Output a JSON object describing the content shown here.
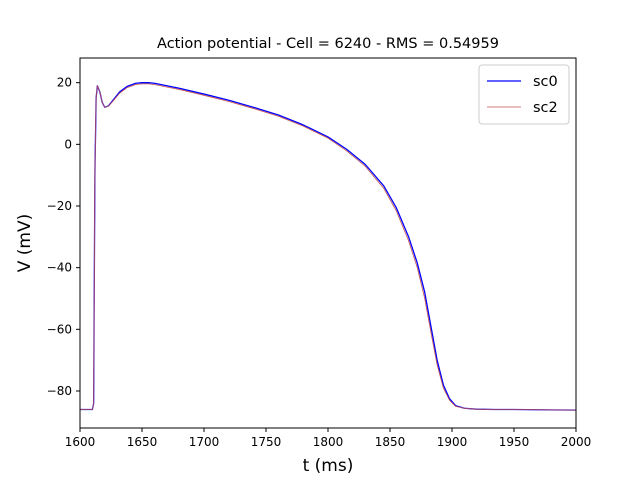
{
  "chart_data": {
    "type": "line",
    "title": "Action potential - Cell = 6240 - RMS = 0.54959",
    "xlabel": "t (ms)",
    "ylabel": "V (mV)",
    "xlim": [
      1600,
      2000
    ],
    "ylim": [
      -92,
      28
    ],
    "xticks": [
      1600,
      1650,
      1700,
      1750,
      1800,
      1850,
      1900,
      1950,
      2000
    ],
    "yticks": [
      -80,
      -60,
      -40,
      -20,
      0,
      20
    ],
    "grid": false,
    "legend_position": "top-right",
    "series": [
      {
        "name": "sc0",
        "color": "#0000ff",
        "x": [
          1600,
          1610,
          1611,
          1612,
          1613,
          1614,
          1616,
          1618,
          1620,
          1623,
          1627,
          1632,
          1638,
          1645,
          1650,
          1655,
          1660,
          1670,
          1680,
          1700,
          1720,
          1740,
          1760,
          1780,
          1800,
          1815,
          1830,
          1845,
          1855,
          1865,
          1872,
          1878,
          1883,
          1888,
          1893,
          1898,
          1903,
          1910,
          1920,
          1935,
          1950,
          2000
        ],
        "y": [
          -86,
          -86,
          -84,
          -10,
          15,
          19,
          17,
          13.5,
          12,
          12.5,
          14.5,
          17,
          18.8,
          19.8,
          20,
          20,
          19.8,
          19,
          18.2,
          16.3,
          14.3,
          12,
          9.5,
          6.3,
          2.4,
          -1.6,
          -6.5,
          -13.5,
          -20.5,
          -30,
          -38.5,
          -48,
          -59,
          -70,
          -78,
          -82.5,
          -84.8,
          -85.6,
          -85.9,
          -86,
          -86,
          -86.2
        ]
      },
      {
        "name": "sc2",
        "color": "#c0504d",
        "x": [
          1600,
          1610,
          1611,
          1612,
          1613,
          1614,
          1616,
          1618,
          1620,
          1623,
          1627,
          1632,
          1638,
          1645,
          1650,
          1655,
          1660,
          1670,
          1680,
          1700,
          1720,
          1740,
          1760,
          1780,
          1800,
          1815,
          1830,
          1845,
          1855,
          1865,
          1872,
          1878,
          1883,
          1888,
          1893,
          1898,
          1903,
          1910,
          1920,
          1935,
          1950,
          2000
        ],
        "y": [
          -86,
          -86,
          -84,
          -10,
          15,
          19,
          17,
          13.5,
          12,
          12.4,
          14.2,
          16.6,
          18.4,
          19.4,
          19.6,
          19.6,
          19.4,
          18.6,
          17.8,
          15.9,
          13.9,
          11.6,
          9.1,
          5.9,
          2,
          -2.1,
          -7.1,
          -14.3,
          -21.5,
          -31.3,
          -40,
          -50,
          -61,
          -71.5,
          -79,
          -83,
          -85,
          -85.6,
          -85.9,
          -86,
          -86,
          -86.2
        ]
      }
    ]
  }
}
